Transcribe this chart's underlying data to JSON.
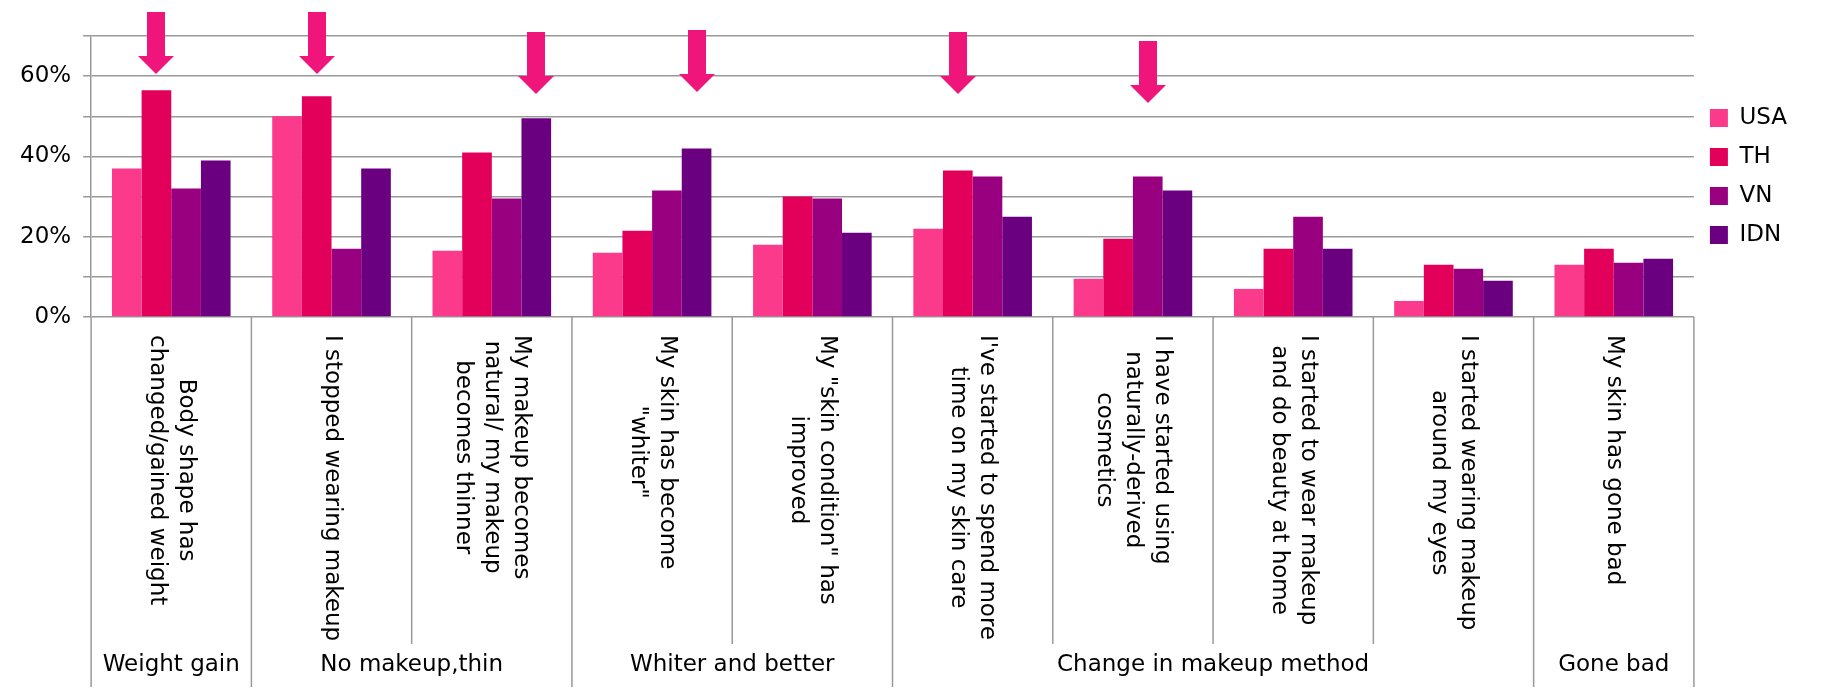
{
  "chart_data": {
    "type": "bar",
    "categories": [
      "Body shape has changed/gained weight",
      "I stopped wearing makeup",
      "My makeup becomes natural/ my makeup becomes thinner",
      "My skin has become \"whiter\"",
      "My \"skin condition\" has improved",
      "I've started to spend more time on my skin care",
      "I have started using naturally-derived cosmetics",
      "I started to wear makeup and do beauty at home",
      "I started wearing makeup around my eyes",
      "My skin has gone bad"
    ],
    "series": [
      {
        "name": "USA",
        "color": "#fb3a8c",
        "values": [
          37,
          50,
          16.5,
          16,
          18,
          22,
          9.5,
          7,
          4,
          13
        ]
      },
      {
        "name": "TH",
        "color": "#e2005a",
        "values": [
          56.5,
          55,
          41,
          21.5,
          30,
          36.5,
          19.5,
          17,
          13,
          17
        ]
      },
      {
        "name": "VN",
        "color": "#990080",
        "values": [
          32,
          17,
          29.5,
          31.5,
          29.5,
          35,
          35,
          25,
          12,
          13.5
        ]
      },
      {
        "name": "IDN",
        "color": "#6a0080",
        "values": [
          39,
          37,
          49.5,
          42,
          21,
          25,
          31.5,
          17,
          9,
          14.5
        ]
      }
    ],
    "ylim": [
      0,
      70
    ],
    "yticks": [
      {
        "value": 0,
        "label": "0%"
      },
      {
        "value": 10,
        "label": null
      },
      {
        "value": 20,
        "label": "20%"
      },
      {
        "value": 30,
        "label": null
      },
      {
        "value": 40,
        "label": "40%"
      },
      {
        "value": 50,
        "label": null
      },
      {
        "value": 60,
        "label": "60%"
      },
      {
        "value": 70,
        "label": null
      }
    ],
    "grid": "y",
    "legend": "right",
    "annotations": [
      "Weight gain",
      "No makeup,thin",
      "Whiter and better",
      "Change in makeup method",
      "Gone bad"
    ]
  }
}
